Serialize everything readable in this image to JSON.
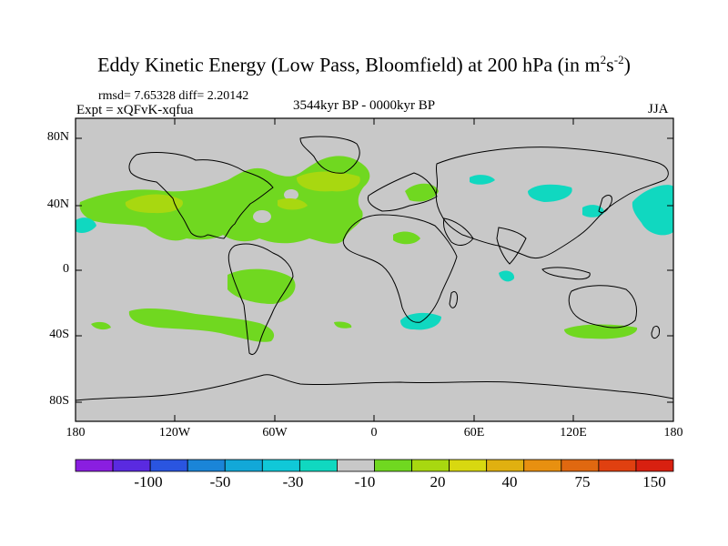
{
  "title": {
    "main": "Eddy Kinetic Energy (Low Pass, Bloomfield) at 200 hPa (in m",
    "sup1": "2",
    "mid": "s",
    "sup2": "-2",
    "end": ")"
  },
  "stats": "rmsd= 7.65328 diff= 2.20142",
  "experiment": "Expt = xQFvK-xqfua",
  "period": "3544kyr BP - 0000kyr BP",
  "season": "JJA",
  "lat_labels": [
    "80N",
    "40N",
    "0",
    "40S",
    "80S"
  ],
  "lon_labels": [
    "180",
    "120W",
    "60W",
    "0",
    "60E",
    "120E",
    "180"
  ],
  "colorbar": {
    "labels": [
      "-100",
      "-50",
      "-30",
      "-10",
      "20",
      "40",
      "75",
      "150"
    ],
    "colors": [
      "#8a1ee0",
      "#5a2ae0",
      "#2a55e0",
      "#1a85d8",
      "#12a8d8",
      "#10c8d8",
      "#10d8c0",
      "#c8c8c8",
      "#70d820",
      "#a8d810",
      "#d8d810",
      "#e0b010",
      "#e89010",
      "#e06810",
      "#e04010",
      "#d82010"
    ]
  },
  "colors": {
    "land_bg": "#c8c8c8",
    "positive_green": "#70d820",
    "positive_yellowgreen": "#a8d810",
    "negative_cyan": "#10d8c0"
  }
}
